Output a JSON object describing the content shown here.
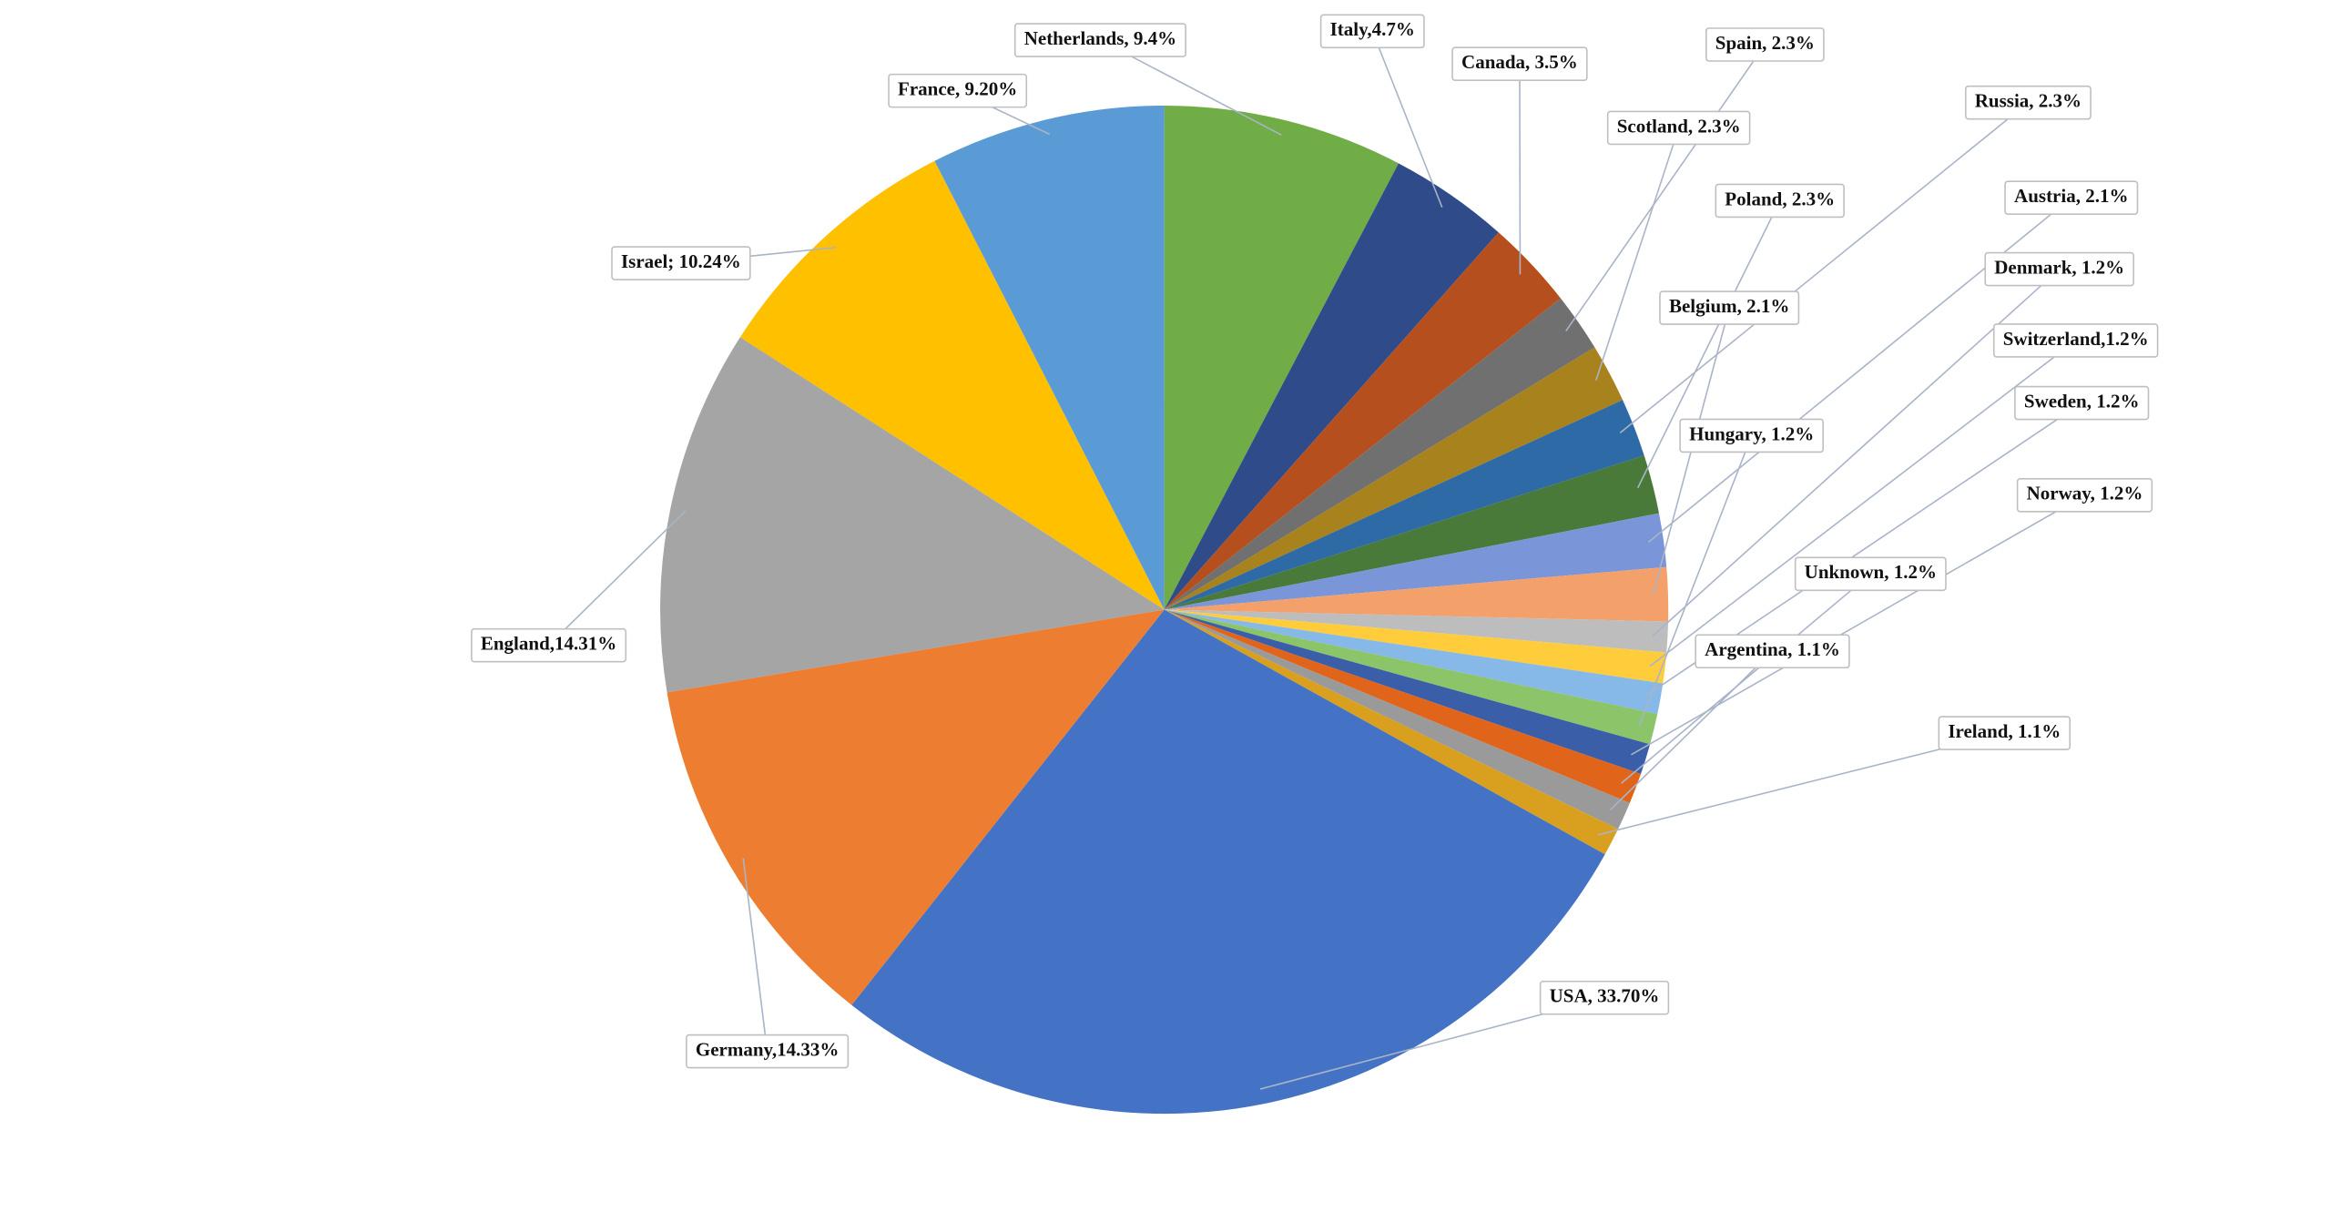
{
  "chart_data": {
    "type": "pie",
    "values": [
      9.4,
      4.7,
      3.5,
      2.3,
      2.3,
      2.3,
      2.3,
      2.1,
      2.1,
      1.2,
      1.2,
      1.2,
      1.2,
      1.2,
      1.2,
      1.1,
      1.1,
      33.7,
      14.33,
      14.31,
      10.24,
      9.2
    ],
    "value_labels": [
      "Netherlands, 9.4%",
      "Italy,4.7%",
      "Canada, 3.5%",
      "Spain, 2.3%",
      "Scotland, 2.3%",
      "Russia, 2.3%",
      "Poland, 2.3%",
      "Austria, 2.1%",
      "Belgium,  2.1%",
      "Denmark, 1.2%",
      "Switzerland,1.2%",
      "Sweden, 1.2%",
      "Hungary, 1.2%",
      "Norway, 1.2%",
      "Unknown, 1.2%",
      "Argentina, 1.1%",
      "Ireland, 1.1%",
      "USA, 33.70%",
      "Germany,14.33%",
      "England,14.31%",
      "Israel; 10.24%",
      "France, 9.20%"
    ],
    "colors": [
      "#70ad47",
      "#2f4b8a",
      "#b5501e",
      "#707070",
      "#a8821c",
      "#2e6aa6",
      "#4a7a3a",
      "#7b96d8",
      "#f4a06a",
      "#bdbdbd",
      "#ffcd3c",
      "#86b8e8",
      "#8cc46a",
      "#3a5ea8",
      "#e0651a",
      "#9a9a9a",
      "#d9a020",
      "#4472c4",
      "#ed7d31",
      "#a5a5a5",
      "#ffc000",
      "#5b9bd5"
    ]
  }
}
